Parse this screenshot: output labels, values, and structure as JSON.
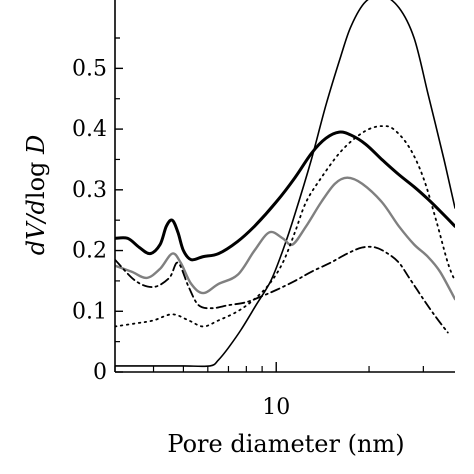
{
  "chart_data": {
    "type": "line",
    "xlabel": "Pore diameter (nm)",
    "ylabel": "dV/dlog D",
    "x_scale": "log",
    "xlim": [
      3,
      38
    ],
    "ylim": [
      0,
      0.55
    ],
    "x_ticks": [
      10
    ],
    "y_ticks": [
      0,
      0.1,
      0.2,
      0.3,
      0.4,
      0.5
    ],
    "grid": false,
    "legend": "none",
    "series": [
      {
        "style": "thin-solid",
        "color": "#000000",
        "points": [
          [
            3.0,
            0.01
          ],
          [
            4.0,
            0.01
          ],
          [
            5.0,
            0.01
          ],
          [
            6.1,
            0.01
          ],
          [
            6.5,
            0.02
          ],
          [
            7.0,
            0.04
          ],
          [
            7.7,
            0.07
          ],
          [
            8.6,
            0.11
          ],
          [
            9.6,
            0.15
          ],
          [
            10.5,
            0.2
          ],
          [
            11.5,
            0.26
          ],
          [
            13.0,
            0.35
          ],
          [
            14.5,
            0.44
          ],
          [
            16.2,
            0.52
          ],
          [
            17.5,
            0.57
          ],
          [
            19.5,
            0.61
          ],
          [
            22.0,
            0.62
          ],
          [
            25.0,
            0.6
          ],
          [
            28.0,
            0.55
          ],
          [
            31.0,
            0.46
          ],
          [
            35.0,
            0.35
          ],
          [
            38.0,
            0.27
          ]
        ]
      },
      {
        "style": "thick-solid",
        "color": "#000000",
        "points": [
          [
            3.0,
            0.22
          ],
          [
            3.3,
            0.22
          ],
          [
            3.6,
            0.205
          ],
          [
            3.9,
            0.195
          ],
          [
            4.2,
            0.21
          ],
          [
            4.4,
            0.24
          ],
          [
            4.6,
            0.25
          ],
          [
            4.8,
            0.23
          ],
          [
            5.0,
            0.2
          ],
          [
            5.3,
            0.185
          ],
          [
            5.8,
            0.19
          ],
          [
            6.5,
            0.195
          ],
          [
            7.5,
            0.215
          ],
          [
            8.5,
            0.24
          ],
          [
            10.0,
            0.28
          ],
          [
            11.5,
            0.32
          ],
          [
            13.0,
            0.36
          ],
          [
            14.5,
            0.385
          ],
          [
            16.0,
            0.395
          ],
          [
            17.5,
            0.39
          ],
          [
            19.5,
            0.375
          ],
          [
            22.0,
            0.35
          ],
          [
            25.0,
            0.325
          ],
          [
            28.0,
            0.305
          ],
          [
            31.0,
            0.285
          ],
          [
            34.0,
            0.265
          ],
          [
            38.0,
            0.24
          ]
        ]
      },
      {
        "style": "gray-solid",
        "color": "#808080",
        "points": [
          [
            3.0,
            0.175
          ],
          [
            3.4,
            0.165
          ],
          [
            3.8,
            0.155
          ],
          [
            4.2,
            0.17
          ],
          [
            4.6,
            0.195
          ],
          [
            4.9,
            0.18
          ],
          [
            5.3,
            0.145
          ],
          [
            5.8,
            0.13
          ],
          [
            6.5,
            0.145
          ],
          [
            7.5,
            0.16
          ],
          [
            8.5,
            0.2
          ],
          [
            9.5,
            0.23
          ],
          [
            10.5,
            0.22
          ],
          [
            11.3,
            0.21
          ],
          [
            12.5,
            0.24
          ],
          [
            14.0,
            0.28
          ],
          [
            15.5,
            0.31
          ],
          [
            17.0,
            0.32
          ],
          [
            19.0,
            0.31
          ],
          [
            22.0,
            0.28
          ],
          [
            25.0,
            0.24
          ],
          [
            28.0,
            0.21
          ],
          [
            31.0,
            0.19
          ],
          [
            34.0,
            0.165
          ],
          [
            38.0,
            0.12
          ]
        ]
      },
      {
        "style": "dotted",
        "color": "#000000",
        "points": [
          [
            3.0,
            0.075
          ],
          [
            3.5,
            0.08
          ],
          [
            4.0,
            0.085
          ],
          [
            4.6,
            0.095
          ],
          [
            5.2,
            0.085
          ],
          [
            5.8,
            0.075
          ],
          [
            6.5,
            0.085
          ],
          [
            7.5,
            0.1
          ],
          [
            8.5,
            0.12
          ],
          [
            9.5,
            0.145
          ],
          [
            10.5,
            0.18
          ],
          [
            11.5,
            0.23
          ],
          [
            12.5,
            0.28
          ],
          [
            14.0,
            0.32
          ],
          [
            16.0,
            0.36
          ],
          [
            18.0,
            0.385
          ],
          [
            20.0,
            0.4
          ],
          [
            22.0,
            0.405
          ],
          [
            24.0,
            0.4
          ],
          [
            27.0,
            0.37
          ],
          [
            30.0,
            0.32
          ],
          [
            33.0,
            0.25
          ],
          [
            36.0,
            0.18
          ],
          [
            38.0,
            0.15
          ]
        ]
      },
      {
        "style": "dash-dot",
        "color": "#000000",
        "points": [
          [
            3.0,
            0.185
          ],
          [
            3.5,
            0.15
          ],
          [
            4.0,
            0.14
          ],
          [
            4.5,
            0.155
          ],
          [
            4.8,
            0.18
          ],
          [
            5.2,
            0.14
          ],
          [
            5.6,
            0.11
          ],
          [
            6.2,
            0.105
          ],
          [
            7.0,
            0.11
          ],
          [
            8.0,
            0.115
          ],
          [
            9.0,
            0.125
          ],
          [
            10.0,
            0.135
          ],
          [
            11.5,
            0.15
          ],
          [
            13.0,
            0.165
          ],
          [
            15.0,
            0.18
          ],
          [
            17.0,
            0.195
          ],
          [
            19.0,
            0.205
          ],
          [
            21.0,
            0.205
          ],
          [
            23.0,
            0.195
          ],
          [
            25.0,
            0.18
          ],
          [
            27.0,
            0.155
          ],
          [
            30.0,
            0.12
          ],
          [
            33.0,
            0.09
          ],
          [
            36.0,
            0.065
          ]
        ]
      }
    ]
  }
}
